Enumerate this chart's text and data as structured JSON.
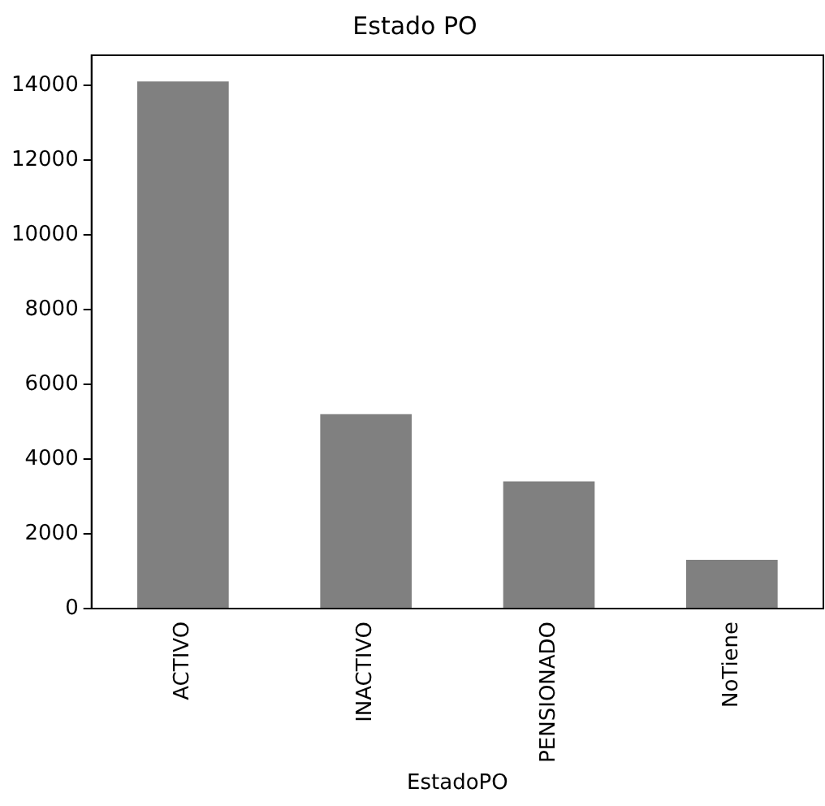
{
  "chart_data": {
    "type": "bar",
    "title": "Estado PO",
    "xlabel": "EstadoPO",
    "categories": [
      "ACTIVO",
      "INACTIVO",
      "PENSIONADO",
      "NoTiene"
    ],
    "values": [
      14100,
      5200,
      3400,
      1300
    ],
    "color": "#808080",
    "ylim": [
      0,
      14800
    ],
    "yticks": [
      0,
      2000,
      4000,
      6000,
      8000,
      10000,
      12000,
      14000
    ],
    "grid": false,
    "legend": false
  }
}
